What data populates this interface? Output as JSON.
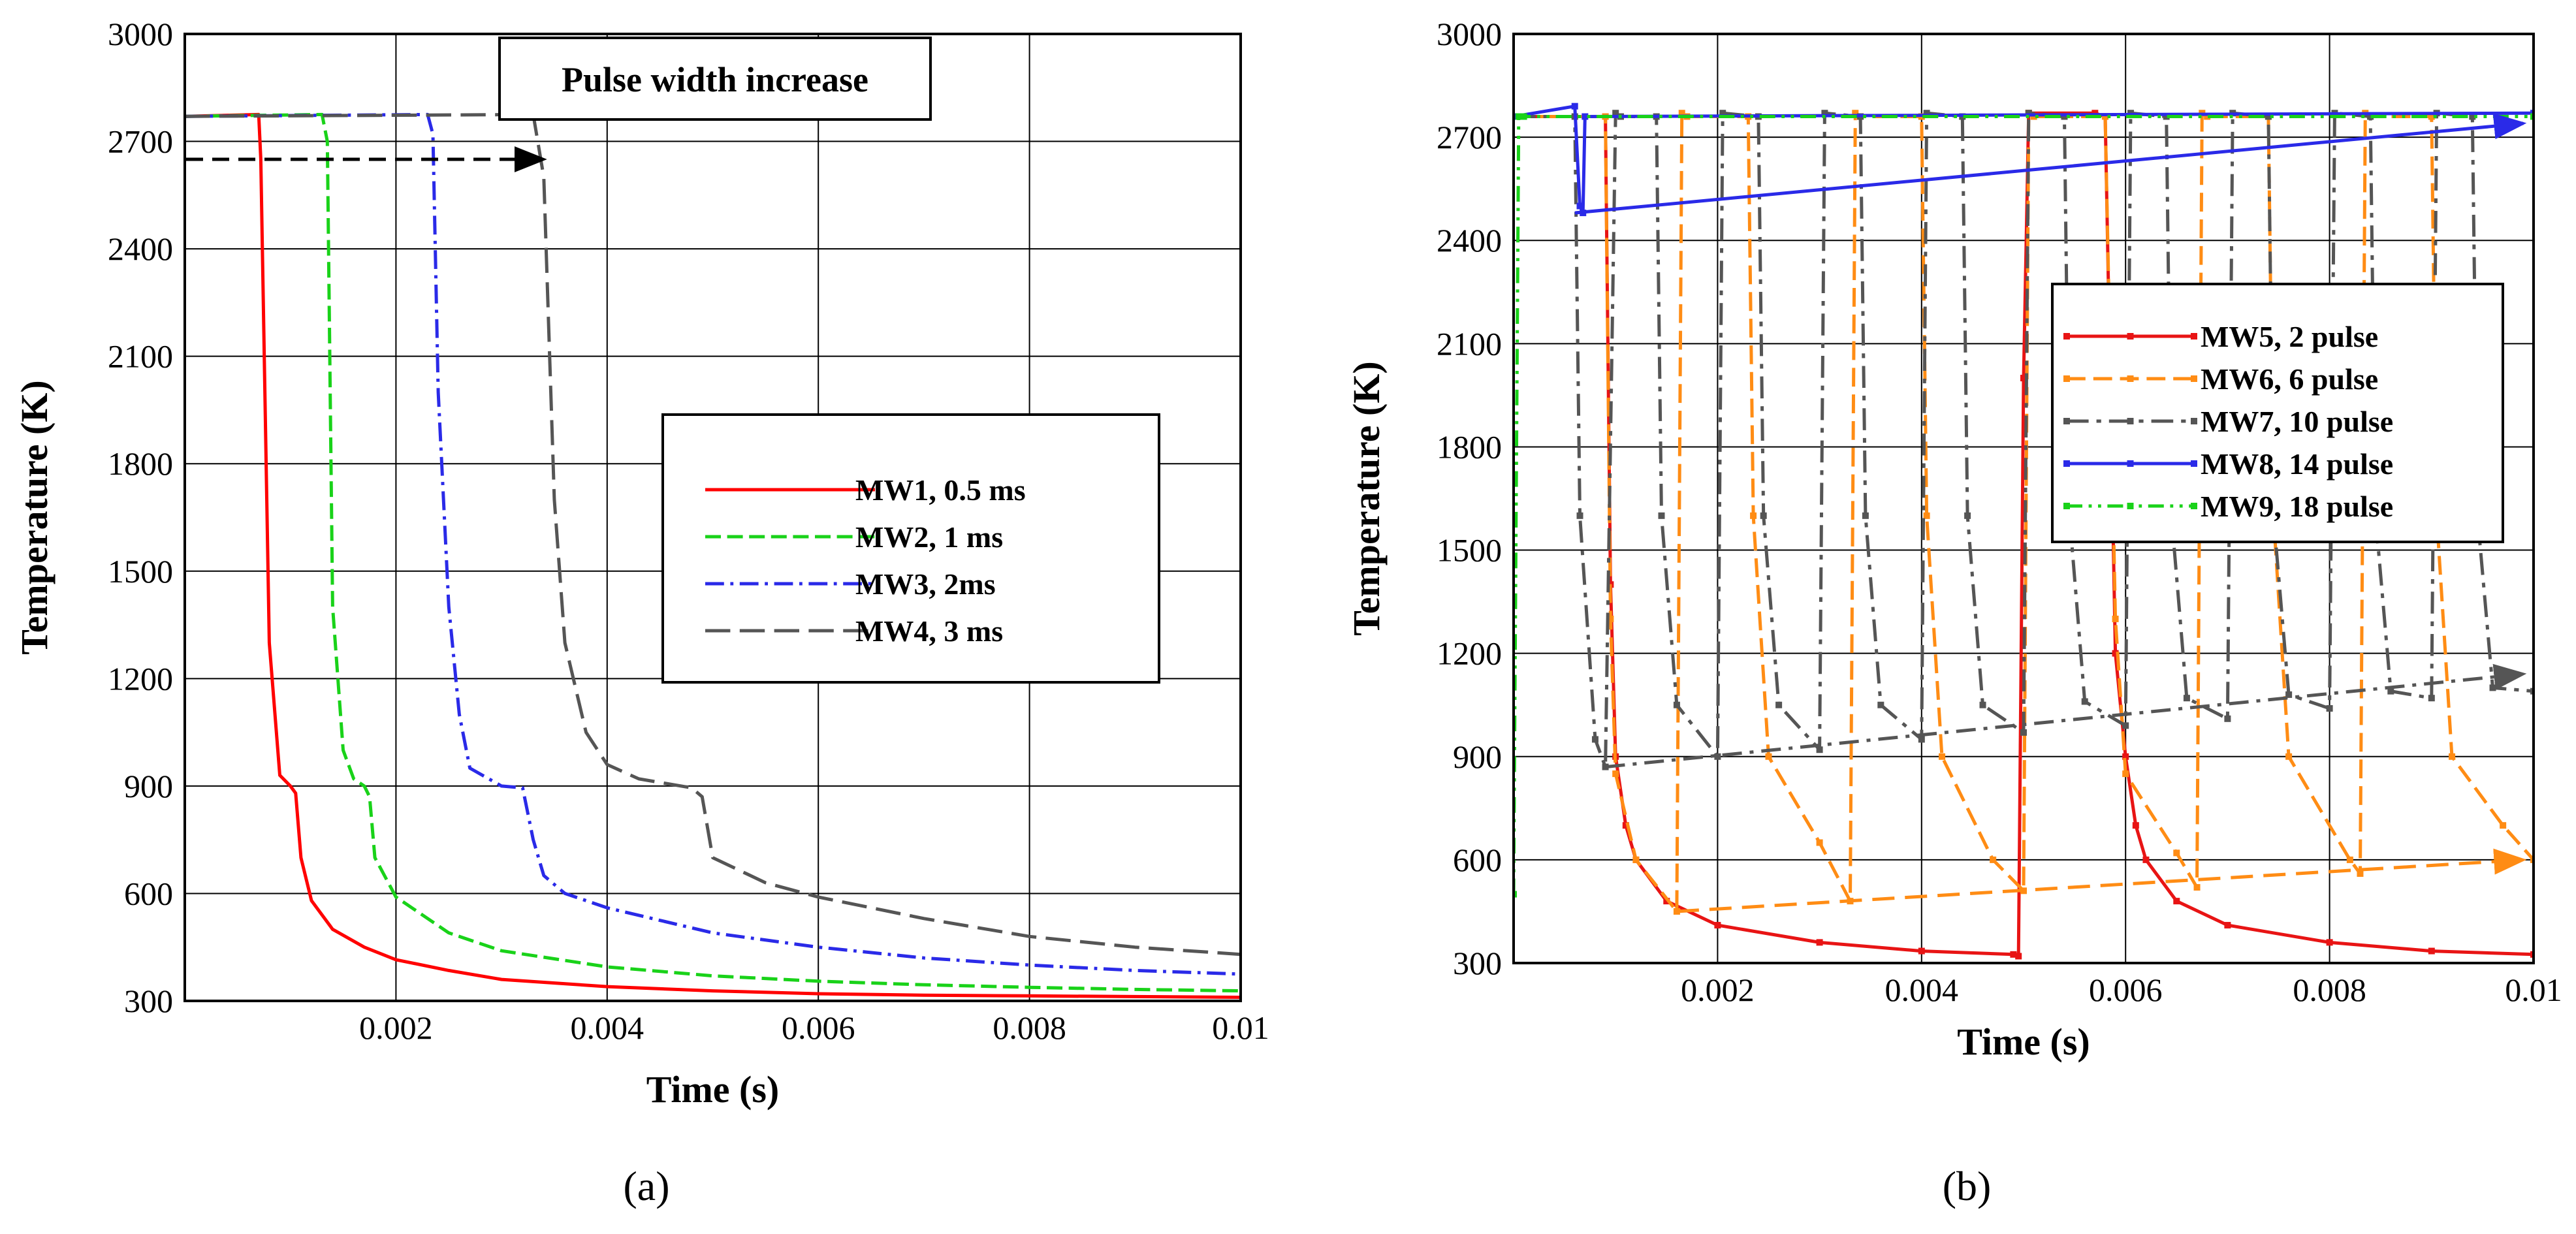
{
  "chart_data": [
    {
      "panel": "a",
      "type": "line",
      "panel_label": "(a)",
      "xlabel": "Time (s)",
      "ylabel": "Temperature (K)",
      "xlim": [
        0,
        0.01
      ],
      "ylim": [
        300,
        3000
      ],
      "xticks": [
        0.002,
        0.004,
        0.006,
        0.008,
        0.01
      ],
      "xtick_labels": [
        "0.002",
        "0.004",
        "0.006",
        "0.008",
        "0.01"
      ],
      "yticks": [
        300,
        600,
        900,
        1200,
        1500,
        1800,
        2100,
        2400,
        2700,
        3000
      ],
      "ytick_labels": [
        "300",
        "600",
        "900",
        "1200",
        "1500",
        "1800",
        "2100",
        "2400",
        "2700",
        "3000"
      ],
      "grid": true,
      "legend_position": "center-right",
      "annotation": {
        "text": "Pulse width increase",
        "arrow_from": [
          0.0,
          2650
        ],
        "arrow_to": [
          0.0034,
          2650
        ]
      },
      "series": [
        {
          "name": "MW1, 0.5 ms",
          "color": "#ff0000",
          "dash": "solid",
          "x": [
            0,
            0.0007,
            0.00072,
            0.0008,
            0.0009,
            0.001,
            0.00105,
            0.0011,
            0.0012,
            0.0014,
            0.0017,
            0.002,
            0.0025,
            0.003,
            0.004,
            0.005,
            0.006,
            0.007,
            0.008,
            0.009,
            0.01
          ],
          "y": [
            2770,
            2775,
            2650,
            1300,
            930,
            900,
            880,
            700,
            580,
            500,
            450,
            415,
            385,
            360,
            340,
            328,
            320,
            316,
            314,
            312,
            310
          ]
        },
        {
          "name": "MW2, 1 ms",
          "color": "#19d219",
          "dash": "10,4",
          "x": [
            0,
            0.0013,
            0.00135,
            0.0014,
            0.0015,
            0.0016,
            0.0017,
            0.00175,
            0.0018,
            0.002,
            0.0025,
            0.003,
            0.004,
            0.005,
            0.006,
            0.007,
            0.008,
            0.009,
            0.01
          ],
          "y": [
            2770,
            2775,
            2700,
            1400,
            1000,
            920,
            900,
            870,
            700,
            590,
            490,
            440,
            395,
            370,
            355,
            345,
            338,
            332,
            328
          ]
        },
        {
          "name": "MW3, 2ms",
          "color": "#2a2ae8",
          "dash": "12,4,2,4",
          "x": [
            0,
            0.0023,
            0.00235,
            0.0024,
            0.0025,
            0.0026,
            0.0027,
            0.003,
            0.0032,
            0.0033,
            0.0034,
            0.0036,
            0.004,
            0.005,
            0.006,
            0.007,
            0.008,
            0.009,
            0.01
          ],
          "y": [
            2770,
            2775,
            2720,
            2000,
            1400,
            1100,
            950,
            900,
            895,
            750,
            650,
            600,
            560,
            490,
            450,
            420,
            400,
            385,
            375
          ]
        },
        {
          "name": "MW4, 3 ms",
          "color": "#555555",
          "dash": "16,6",
          "x": [
            0,
            0.0033,
            0.0034,
            0.0035,
            0.0036,
            0.0038,
            0.004,
            0.0043,
            0.0045,
            0.0048,
            0.0049,
            0.005,
            0.0055,
            0.006,
            0.007,
            0.008,
            0.009,
            0.01
          ],
          "y": [
            2770,
            2775,
            2600,
            1700,
            1300,
            1050,
            960,
            920,
            910,
            895,
            870,
            700,
            630,
            590,
            530,
            480,
            450,
            430
          ]
        }
      ]
    },
    {
      "panel": "b",
      "type": "line",
      "panel_label": "(b)",
      "xlabel": "Time (s)",
      "ylabel": "Temperature (K)",
      "xlim": [
        0,
        0.01
      ],
      "ylim": [
        300,
        3000
      ],
      "xticks": [
        0.002,
        0.004,
        0.006,
        0.008,
        0.01
      ],
      "xtick_labels": [
        "0.002",
        "0.004",
        "0.006",
        "0.008",
        "0.01"
      ],
      "yticks": [
        300,
        600,
        900,
        1200,
        1500,
        1800,
        2100,
        2400,
        2700,
        3000
      ],
      "ytick_labels": [
        "300",
        "600",
        "900",
        "1200",
        "1500",
        "1800",
        "2100",
        "2400",
        "2700",
        "3000"
      ],
      "grid": true,
      "legend_position": "right",
      "trend_arrows": [
        {
          "series": "MW8, 14 pulse",
          "from": [
            0.0006,
            2480
          ],
          "to": [
            0.0099,
            2740
          ]
        },
        {
          "series": "MW7, 10 pulse",
          "from": [
            0.0009,
            870
          ],
          "to": [
            0.0099,
            1140
          ]
        },
        {
          "series": "MW6, 6 pulse",
          "from": [
            0.0016,
            450
          ],
          "to": [
            0.0099,
            600
          ]
        }
      ],
      "series": [
        {
          "name": "MW5, 2 pulse",
          "color": "#e81414",
          "dash": "solid",
          "x": [
            0,
            0.0009,
            0.00095,
            0.001,
            0.0011,
            0.0012,
            0.0015,
            0.002,
            0.003,
            0.004,
            0.0049,
            0.00495,
            0.005,
            0.00505,
            0.0057,
            0.0058,
            0.0059,
            0.006,
            0.0061,
            0.0062,
            0.0065,
            0.007,
            0.008,
            0.009,
            0.01
          ],
          "y": [
            2760,
            2760,
            1400,
            900,
            700,
            600,
            480,
            410,
            360,
            335,
            325,
            320,
            2000,
            2770,
            2770,
            2760,
            1200,
            900,
            700,
            600,
            480,
            410,
            360,
            335,
            325
          ]
        },
        {
          "name": "MW6, 6 pulse",
          "color": "#ff8c14",
          "dash": "12,5",
          "x": [
            0,
            0.0009,
            0.00095,
            0.001,
            0.0012,
            0.0016,
            0.00165,
            0.0017,
            0.0023,
            0.00235,
            0.0025,
            0.003,
            0.0033,
            0.00335,
            0.0034,
            0.004,
            0.00405,
            0.0042,
            0.0047,
            0.005,
            0.00505,
            0.0051,
            0.0058,
            0.0059,
            0.006,
            0.0065,
            0.0067,
            0.00675,
            0.0068,
            0.0074,
            0.00745,
            0.0076,
            0.0082,
            0.0083,
            0.00835,
            0.0084,
            0.009,
            0.00905,
            0.0092,
            0.0097,
            0.01
          ],
          "y": [
            2760,
            2760,
            1300,
            850,
            600,
            450,
            2770,
            2760,
            2760,
            1600,
            900,
            650,
            480,
            2770,
            2760,
            2760,
            1600,
            900,
            600,
            510,
            2770,
            2760,
            2760,
            1300,
            850,
            620,
            520,
            2770,
            2760,
            2760,
            1600,
            900,
            600,
            560,
            2770,
            2760,
            2760,
            1600,
            900,
            700,
            600
          ]
        },
        {
          "name": "MW7, 10 pulse",
          "color": "#555555",
          "dash": "14,5,3,5",
          "x": [
            0,
            0.0006,
            0.00065,
            0.0008,
            0.0009,
            0.001,
            0.00105,
            0.0014,
            0.00145,
            0.0016,
            0.002,
            0.00205,
            0.0024,
            0.00245,
            0.0026,
            0.003,
            0.00305,
            0.0034,
            0.00345,
            0.0036,
            0.004,
            0.00405,
            0.0044,
            0.00445,
            0.0046,
            0.005,
            0.00505,
            0.0054,
            0.00545,
            0.0056,
            0.006,
            0.00605,
            0.0064,
            0.00645,
            0.0066,
            0.007,
            0.00705,
            0.0074,
            0.00745,
            0.0076,
            0.008,
            0.00805,
            0.0084,
            0.00845,
            0.0086,
            0.009,
            0.00905,
            0.0094,
            0.00945,
            0.0096,
            0.01
          ],
          "y": [
            2760,
            2760,
            1600,
            950,
            870,
            2770,
            2760,
            2760,
            1600,
            1050,
            900,
            2770,
            2760,
            1600,
            1050,
            920,
            2770,
            2760,
            1600,
            1050,
            950,
            2770,
            2760,
            1600,
            1050,
            970,
            2770,
            2760,
            1600,
            1060,
            990,
            2770,
            2760,
            1600,
            1070,
            1010,
            2770,
            2760,
            1600,
            1080,
            1040,
            2770,
            2760,
            1600,
            1090,
            1070,
            2770,
            2760,
            1600,
            1100,
            1090
          ]
        },
        {
          "name": "MW8, 14 pulse",
          "color": "#2a2ae8",
          "dash": "solid",
          "x": [
            0,
            0.0006,
            0.00065,
            0.00068,
            0.0007,
            0.01
          ],
          "y": [
            2760,
            2790,
            2500,
            2480,
            2760,
            2770
          ]
        },
        {
          "name": "MW9, 18 pulse",
          "color": "#19d219",
          "dash": "10,4,2,4,2,4",
          "x": [
            0,
            5e-05,
            0.0001,
            0.01
          ],
          "y": [
            500,
            2760,
            2760,
            2760
          ]
        }
      ]
    }
  ]
}
